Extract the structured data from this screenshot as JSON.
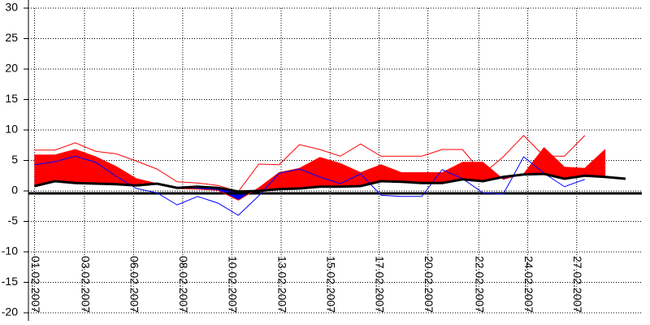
{
  "chart_data": {
    "type": "line",
    "x": [
      0,
      1,
      2,
      3,
      4,
      5,
      6,
      7,
      8,
      9,
      10,
      11,
      12,
      13,
      14,
      15,
      16,
      17,
      18,
      19,
      20,
      21,
      22,
      23,
      24,
      25,
      26,
      27,
      28,
      29
    ],
    "xlim": [
      -0.3,
      29.8
    ],
    "xticks": [
      {
        "value": 0,
        "label": "01.02.2007"
      },
      {
        "value": 2.45,
        "label": "03.02.2007"
      },
      {
        "value": 4.86,
        "label": "06.02.2007"
      },
      {
        "value": 7.27,
        "label": "08.02.2007"
      },
      {
        "value": 9.68,
        "label": "10.02.2007"
      },
      {
        "value": 12.1,
        "label": "13.02.2007"
      },
      {
        "value": 14.5,
        "label": "15.02.2007"
      },
      {
        "value": 16.9,
        "label": "17.02.2007"
      },
      {
        "value": 19.3,
        "label": "20.02.2007"
      },
      {
        "value": 21.8,
        "label": "22.02.2007"
      },
      {
        "value": 24.2,
        "label": "24.02.2007"
      },
      {
        "value": 26.6,
        "label": "27.02.2007"
      }
    ],
    "ylim": [
      -20,
      30
    ],
    "yticks": [
      -20,
      -15,
      -10,
      -5,
      0,
      5,
      10,
      15,
      20,
      25,
      30
    ],
    "grid": true,
    "fill_colors": [
      "#ff0000",
      "#0000ff"
    ],
    "series": [
      {
        "color": "#ff0000",
        "width": 1,
        "values": [
          6.7,
          6.7,
          7.9,
          6.5,
          6.1,
          4.9,
          3.6,
          1.5,
          1.3,
          0.9,
          -0.1,
          4.4,
          4.3,
          7.6,
          6.8,
          5.7,
          7.7,
          5.7,
          5.7,
          5.7,
          6.8,
          6.8,
          2.8,
          5.6,
          9.1,
          5.7,
          5.7,
          9.1,
          null,
          null
        ]
      },
      {
        "color": "#ff0000",
        "width": 1,
        "fill": true,
        "values": [
          5.9,
          5.9,
          6.8,
          5.6,
          4.0,
          2.0,
          1.2,
          0.4,
          0.3,
          0.1,
          -1.5,
          0.5,
          3.0,
          3.7,
          5.5,
          4.5,
          3.0,
          4.3,
          3.0,
          3.0,
          3.0,
          4.7,
          4.7,
          1.9,
          2.8,
          7.1,
          3.9,
          3.7,
          6.8,
          null
        ]
      },
      {
        "color": "#0000ff",
        "width": 1,
        "values": [
          4.3,
          4.8,
          5.7,
          4.7,
          2.4,
          0.4,
          -0.3,
          -2.3,
          -0.9,
          -2.0,
          -4.0,
          -0.8,
          2.9,
          3.6,
          2.3,
          1.2,
          2.8,
          -0.7,
          -0.9,
          -0.9,
          3.5,
          2.0,
          -0.3,
          -0.5,
          5.6,
          2.9,
          0.7,
          1.9,
          null,
          null
        ]
      },
      {
        "color": "#000000",
        "width": 3,
        "values": [
          0.8,
          1.6,
          1.3,
          1.2,
          1.1,
          0.9,
          1.2,
          0.5,
          0.7,
          0.5,
          -0.1,
          0.0,
          0.3,
          0.4,
          0.7,
          0.7,
          0.8,
          1.6,
          1.5,
          1.3,
          1.3,
          1.9,
          1.6,
          2.3,
          2.7,
          2.8,
          2.0,
          2.5,
          2.3,
          2.0
        ]
      }
    ]
  }
}
